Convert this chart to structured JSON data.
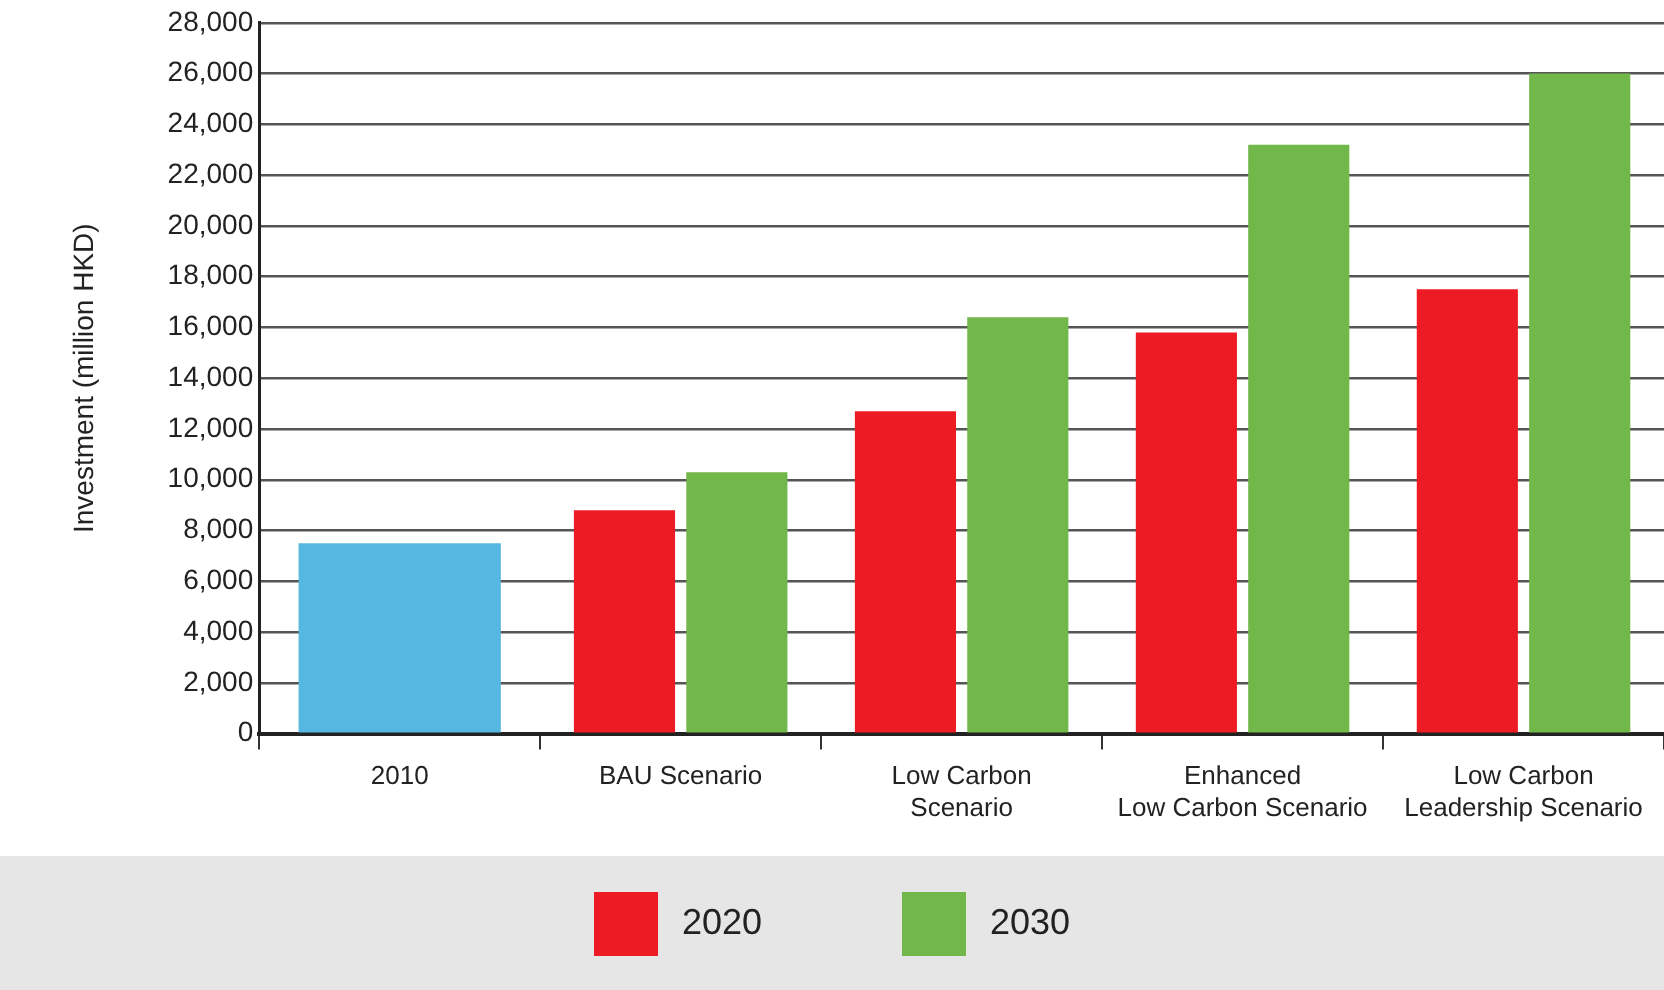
{
  "chart_data": {
    "type": "bar",
    "ylabel": "Investment (million HKD)",
    "categories": [
      "2010",
      "BAU Scenario",
      "Low Carbon\nScenario",
      "Enhanced\nLow Carbon Scenario",
      "Low Carbon\nLeadership Scenario"
    ],
    "series": [
      {
        "color": "#56b8e0",
        "values": [
          7500,
          null,
          null,
          null,
          null
        ]
      },
      {
        "name": "2020",
        "color": "#ed1c24",
        "values": [
          null,
          8800,
          12700,
          15800,
          17500
        ]
      },
      {
        "name": "2030",
        "color": "#72b74a",
        "values": [
          null,
          10300,
          16400,
          23200,
          26000
        ]
      }
    ],
    "ylim": [
      0,
      28000
    ],
    "yticks": [
      {
        "value": 0,
        "label": "0"
      },
      {
        "value": 2000,
        "label": "2,000"
      },
      {
        "value": 4000,
        "label": "4,000"
      },
      {
        "value": 6000,
        "label": "6,000"
      },
      {
        "value": 8000,
        "label": "8,000"
      },
      {
        "value": 10000,
        "label": "10,000"
      },
      {
        "value": 12000,
        "label": "12,000"
      },
      {
        "value": 14000,
        "label": "14,000"
      },
      {
        "value": 16000,
        "label": "16,000"
      },
      {
        "value": 18000,
        "label": "18,000"
      },
      {
        "value": 20000,
        "label": "20,000"
      },
      {
        "value": 22000,
        "label": "22,000"
      },
      {
        "value": 24000,
        "label": "24,000"
      },
      {
        "value": 26000,
        "label": "26,000"
      },
      {
        "value": 28000,
        "label": "28,000"
      }
    ],
    "grid": "y",
    "legend": "bottom"
  }
}
